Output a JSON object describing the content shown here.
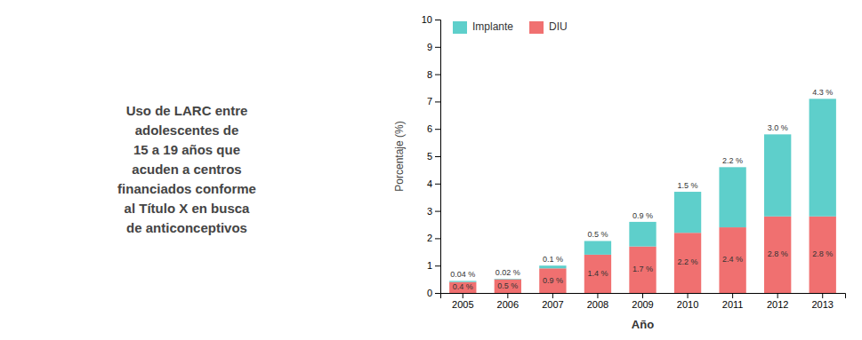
{
  "chart_data": {
    "type": "bar",
    "stacked": true,
    "title": "Uso de LARC entre\nadolescentes de\n15 a 19 años que\nacuden a centros\nfinanciados conforme\nal Título X en busca\nde anticonceptivos",
    "categories": [
      "2005",
      "2006",
      "2007",
      "2008",
      "2009",
      "2010",
      "2011",
      "2012",
      "2013"
    ],
    "series": [
      {
        "name": "DIU",
        "color": "#F07070",
        "values": [
          0.4,
          0.5,
          0.9,
          1.4,
          1.7,
          2.2,
          2.4,
          2.8,
          2.8
        ],
        "value_labels": [
          "0.4 %",
          "0.5 %",
          "0.9 %",
          "1.4 %",
          "1.7 %",
          "2.2 %",
          "2.4 %",
          "2.8 %",
          "2.8 %"
        ]
      },
      {
        "name": "Implante",
        "color": "#5ECFCB",
        "values": [
          0.04,
          0.02,
          0.1,
          0.5,
          0.9,
          1.5,
          2.2,
          3.0,
          4.3
        ],
        "value_labels": [
          "0.04 %",
          "0.02 %",
          "0.1 %",
          "0.5 %",
          "0.9 %",
          "1.5 %",
          "2.2 %",
          "3.0 %",
          "4.3 %"
        ]
      }
    ],
    "xlabel": "Año",
    "ylabel": "Porcentaje (%)",
    "ylim": [
      0,
      10
    ],
    "yticks": [
      0,
      1,
      2,
      3,
      4,
      5,
      6,
      7,
      8,
      9,
      10
    ],
    "grid": false,
    "legend": "upper left",
    "data_labels": true
  }
}
